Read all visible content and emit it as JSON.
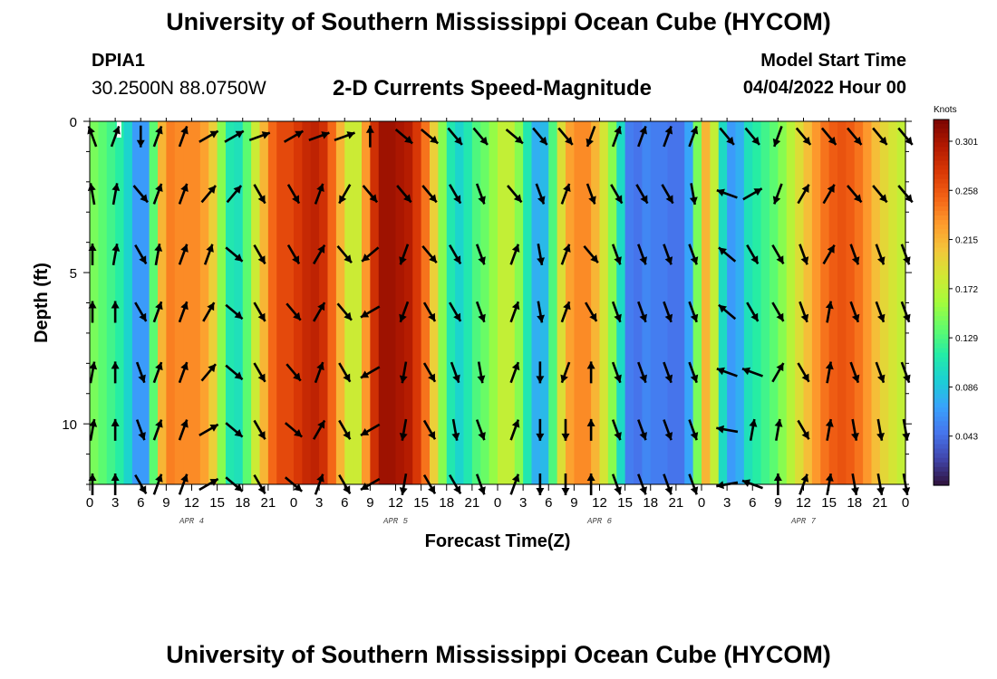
{
  "header": {
    "title": "University of Southern Mississippi Ocean Cube (HYCOM)",
    "station_id": "DPIA1",
    "station_coords": "30.2500N  88.0750W",
    "chart_heading": "2-D Currents Speed-Magnitude",
    "model_start_label": "Model Start Time",
    "model_start_value": "04/04/2022 Hour 00"
  },
  "footer": {
    "title": "University of Southern Mississippi Ocean Cube (HYCOM)"
  },
  "chart_data": {
    "type": "heatmap",
    "title": "2-D Currents Speed-Magnitude",
    "xlabel": "Forecast Time(Z)",
    "ylabel": "Depth (ft)",
    "x_hours_range": [
      0,
      96
    ],
    "ylim": [
      0,
      12
    ],
    "y_inverted": true,
    "x_tick_hours": [
      0,
      3,
      6,
      9,
      12,
      15,
      18,
      21,
      24,
      27,
      30,
      33,
      36,
      39,
      42,
      45,
      48,
      51,
      54,
      57,
      60,
      63,
      66,
      69,
      72,
      75,
      78,
      81,
      84,
      87,
      90,
      93,
      96
    ],
    "x_tick_labels": [
      "0",
      "3",
      "6",
      "9",
      "12",
      "15",
      "18",
      "21",
      "0",
      "3",
      "6",
      "9",
      "12",
      "15",
      "18",
      "21",
      "0",
      "3",
      "6",
      "9",
      "12",
      "15",
      "18",
      "21",
      "0",
      "3",
      "6",
      "9",
      "12",
      "15",
      "18",
      "21",
      "0"
    ],
    "y_ticks": [
      0,
      5,
      10
    ],
    "y_minor_ticks": [
      1,
      2,
      3,
      4,
      6,
      7,
      8,
      9,
      11,
      12
    ],
    "date_labels": [
      {
        "hour": 12,
        "label": "APR 4"
      },
      {
        "hour": 36,
        "label": "APR 5"
      },
      {
        "hour": 60,
        "label": "APR 6"
      },
      {
        "hour": 84,
        "label": "APR 7"
      }
    ],
    "speed_profile": {
      "hours": [
        0,
        1,
        2,
        3,
        4,
        5,
        6,
        7,
        8,
        9,
        10,
        11,
        12,
        13,
        14,
        15,
        16,
        17,
        18,
        19,
        20,
        21,
        22,
        23,
        24,
        25,
        26,
        27,
        28,
        29,
        30,
        31,
        32,
        33,
        34,
        35,
        36,
        37,
        38,
        39,
        40,
        41,
        42,
        43,
        44,
        45,
        46,
        47,
        48,
        49,
        50,
        51,
        52,
        53,
        54,
        55,
        56,
        57,
        58,
        59,
        60,
        61,
        62,
        63,
        64,
        65,
        66,
        67,
        68,
        69,
        70,
        71,
        72,
        73,
        74,
        75,
        76,
        77,
        78,
        79,
        80,
        81,
        82,
        83,
        84,
        85,
        86,
        87,
        88,
        89,
        90,
        91,
        92,
        93,
        94,
        95,
        96
      ],
      "speed_knots": [
        0.15,
        0.14,
        0.13,
        0.12,
        0.11,
        0.08,
        0.05,
        0.08,
        0.19,
        0.24,
        0.24,
        0.23,
        0.24,
        0.23,
        0.22,
        0.18,
        0.12,
        0.1,
        0.11,
        0.16,
        0.2,
        0.23,
        0.27,
        0.26,
        0.27,
        0.28,
        0.29,
        0.29,
        0.27,
        0.23,
        0.2,
        0.16,
        0.2,
        0.26,
        0.3,
        0.31,
        0.3,
        0.3,
        0.29,
        0.26,
        0.23,
        0.17,
        0.13,
        0.09,
        0.1,
        0.12,
        0.14,
        0.14,
        0.17,
        0.18,
        0.17,
        0.13,
        0.09,
        0.06,
        0.1,
        0.16,
        0.22,
        0.23,
        0.24,
        0.23,
        0.2,
        0.17,
        0.13,
        0.07,
        0.03,
        0.06,
        0.05,
        0.05,
        0.05,
        0.04,
        0.05,
        0.09,
        0.2,
        0.23,
        0.12,
        0.08,
        0.05,
        0.1,
        0.11,
        0.12,
        0.13,
        0.14,
        0.16,
        0.18,
        0.2,
        0.22,
        0.24,
        0.25,
        0.26,
        0.26,
        0.25,
        0.24,
        0.22,
        0.2,
        0.19,
        0.18,
        0.17
      ]
    },
    "vectors": {
      "depths_ft": [
        0.5,
        2.4,
        4.4,
        6.3,
        8.3,
        10.2,
        12.0
      ],
      "hours": [
        0,
        3,
        6,
        8,
        11,
        14,
        17,
        20,
        24,
        27,
        30,
        33,
        37,
        40,
        43,
        46,
        50,
        53,
        56,
        59,
        62,
        65,
        68,
        71,
        75,
        78,
        81,
        84,
        87,
        90,
        93,
        96
      ],
      "direction_at_depth": [
        [
          160,
          200,
          0,
          200,
          200,
          240,
          240,
          250,
          240,
          250,
          250,
          180,
          310,
          310,
          320,
          320,
          310,
          320,
          320,
          20,
          200,
          200,
          200,
          200,
          320,
          320,
          20,
          320,
          320,
          320,
          320,
          320
        ],
        [
          170,
          190,
          320,
          200,
          200,
          220,
          220,
          330,
          330,
          200,
          30,
          320,
          320,
          320,
          330,
          340,
          320,
          340,
          200,
          340,
          330,
          330,
          330,
          350,
          110,
          240,
          20,
          210,
          210,
          320,
          320,
          320
        ],
        [
          180,
          190,
          330,
          190,
          200,
          200,
          310,
          330,
          330,
          210,
          320,
          50,
          20,
          320,
          330,
          340,
          200,
          350,
          200,
          320,
          340,
          340,
          340,
          340,
          130,
          330,
          330,
          340,
          210,
          340,
          340,
          340
        ],
        [
          180,
          180,
          330,
          200,
          200,
          210,
          310,
          330,
          320,
          210,
          320,
          60,
          20,
          330,
          330,
          340,
          200,
          350,
          200,
          330,
          340,
          340,
          340,
          340,
          130,
          330,
          330,
          340,
          190,
          340,
          340,
          340
        ],
        [
          190,
          180,
          340,
          200,
          200,
          220,
          310,
          330,
          320,
          200,
          330,
          60,
          10,
          330,
          340,
          350,
          200,
          0,
          20,
          180,
          340,
          340,
          340,
          340,
          110,
          110,
          210,
          330,
          190,
          340,
          340,
          340
        ],
        [
          190,
          180,
          340,
          200,
          200,
          240,
          310,
          330,
          310,
          210,
          330,
          60,
          10,
          330,
          350,
          340,
          200,
          0,
          0,
          180,
          340,
          340,
          340,
          340,
          100,
          190,
          190,
          330,
          190,
          350,
          350,
          350
        ],
        [
          180,
          180,
          330,
          200,
          200,
          240,
          310,
          330,
          310,
          200,
          330,
          60,
          10,
          330,
          330,
          340,
          200,
          0,
          0,
          180,
          340,
          340,
          340,
          340,
          80,
          110,
          180,
          200,
          190,
          350,
          350,
          350
        ]
      ],
      "direction_convention": "degrees clockwise from screen-down (0 = pointing down / deeper)"
    },
    "colorbar": {
      "unit": "Knots",
      "min": 0.0,
      "max": 0.32,
      "tick_labels": [
        "0.301",
        "0.258",
        "0.215",
        "0.172",
        "0.129",
        "0.086",
        "0.043"
      ],
      "tick_values": [
        0.301,
        0.258,
        0.215,
        0.172,
        0.129,
        0.086,
        0.043
      ]
    },
    "palette": [
      "#30123b",
      "#4145ab",
      "#4675ed",
      "#39a2fc",
      "#1bcfd4",
      "#24eca6",
      "#61fc6c",
      "#a4fc3b",
      "#d1e834",
      "#f3c63a",
      "#fe9b2d",
      "#f36315",
      "#d93806",
      "#b11901",
      "#7a0402"
    ],
    "gridlines": false,
    "marker_hour": 3.4
  }
}
